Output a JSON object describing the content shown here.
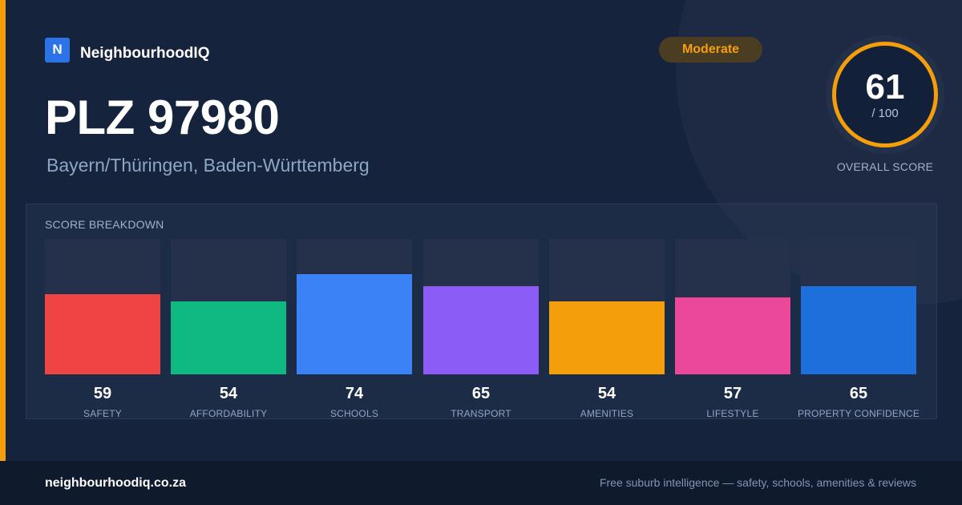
{
  "brand": {
    "logo_letter": "N",
    "name": "NeighbourhoodIQ"
  },
  "badge": {
    "label": "Moderate",
    "color": "#f59e0b"
  },
  "location": {
    "title": "PLZ 97980",
    "region": "Bayern/Thüringen, Baden-Württemberg"
  },
  "overall": {
    "score": "61",
    "max": "/ 100",
    "label": "OVERALL SCORE",
    "color": "#f59e0b"
  },
  "breakdown": {
    "title": "SCORE BREAKDOWN",
    "max": 100,
    "metrics": [
      {
        "label": "SAFETY",
        "value": 59,
        "color": "#ef4444"
      },
      {
        "label": "AFFORDABILITY",
        "value": 54,
        "color": "#10b981"
      },
      {
        "label": "SCHOOLS",
        "value": 74,
        "color": "#3b82f6"
      },
      {
        "label": "TRANSPORT",
        "value": 65,
        "color": "#8b5cf6"
      },
      {
        "label": "AMENITIES",
        "value": 54,
        "color": "#f59e0b"
      },
      {
        "label": "LIFESTYLE",
        "value": 57,
        "color": "#ec4899"
      },
      {
        "label": "PROPERTY CONFIDENCE",
        "value": 65,
        "color": "#1d6fdb"
      }
    ]
  },
  "footer": {
    "url": "neighbourhoodiq.co.za",
    "tagline": "Free suburb intelligence — safety, schools, amenities & reviews"
  }
}
